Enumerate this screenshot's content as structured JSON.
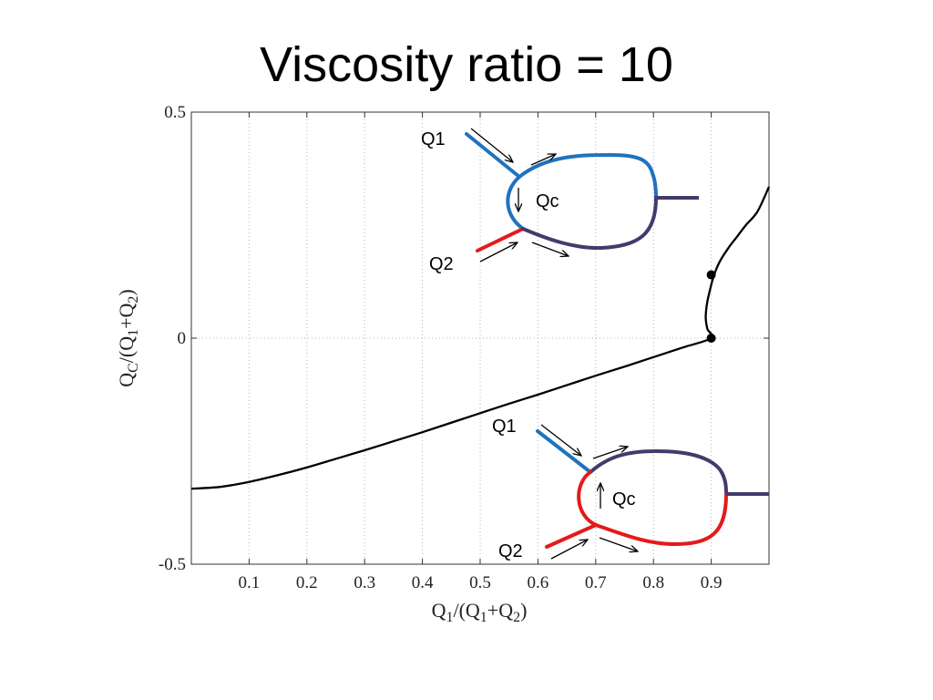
{
  "slide": {
    "title": "Viscosity ratio = 10"
  },
  "chart_data": {
    "type": "line",
    "xlim": [
      0.0,
      1.0
    ],
    "ylim": [
      -0.5,
      0.5
    ],
    "xticks": [
      0.1,
      0.2,
      0.3,
      0.4,
      0.5,
      0.6,
      0.7,
      0.8,
      0.9
    ],
    "xtick_labels": [
      "0.1",
      "0.2",
      "0.3",
      "0.4",
      "0.5",
      "0.6",
      "0.7",
      "0.8",
      "0.9"
    ],
    "yticks": [
      -0.5,
      0,
      0.5
    ],
    "ytick_labels": [
      "-0.5",
      "0",
      "0.5"
    ],
    "grid": "vertical dotted",
    "xlabel": {
      "main": "Q",
      "sub1": "1",
      "mid": "/(Q",
      "sub2": "1",
      "plus": "+Q",
      "sub3": "2",
      "end": ")"
    },
    "ylabel": {
      "main": "Q",
      "sub1": "C",
      "mid": "/(Q",
      "sub2": "1",
      "plus": "+Q",
      "sub3": "2",
      "end": ")"
    },
    "series": [
      {
        "color": "#000000",
        "x": [
          0.0,
          0.05,
          0.1,
          0.15,
          0.2,
          0.25,
          0.3,
          0.35,
          0.4,
          0.45,
          0.5,
          0.55,
          0.6,
          0.65,
          0.7,
          0.75,
          0.8,
          0.85,
          0.9,
          0.8935,
          0.8905,
          0.8925,
          0.8975,
          0.905,
          0.915,
          0.93,
          0.945,
          0.96,
          0.98,
          1.0
        ],
        "y": [
          -0.333,
          -0.329,
          -0.318,
          -0.303,
          -0.286,
          -0.267,
          -0.248,
          -0.228,
          -0.208,
          -0.187,
          -0.166,
          -0.145,
          -0.125,
          -0.104,
          -0.083,
          -0.063,
          -0.042,
          -0.021,
          0.0,
          0.02,
          0.045,
          0.075,
          0.105,
          0.14,
          0.17,
          0.2,
          0.225,
          0.25,
          0.28,
          0.335
        ]
      }
    ],
    "markers": [
      {
        "x": 0.9,
        "y": 0.0
      },
      {
        "x": 0.9,
        "y": 0.14
      }
    ],
    "annotations": {
      "top_inset": {
        "q1": "Q1",
        "q2": "Q2",
        "qc": "Qc",
        "colors": {
          "inlet1": "#1f73bd",
          "inlet2": "#e31b1b",
          "mixed": "#443a6b"
        }
      },
      "bottom_inset": {
        "q1": "Q1",
        "q2": "Q2",
        "qc": "Qc",
        "colors": {
          "inlet1": "#1f73bd",
          "inlet2": "#e31b1b",
          "mixed": "#443a6b"
        }
      }
    }
  }
}
